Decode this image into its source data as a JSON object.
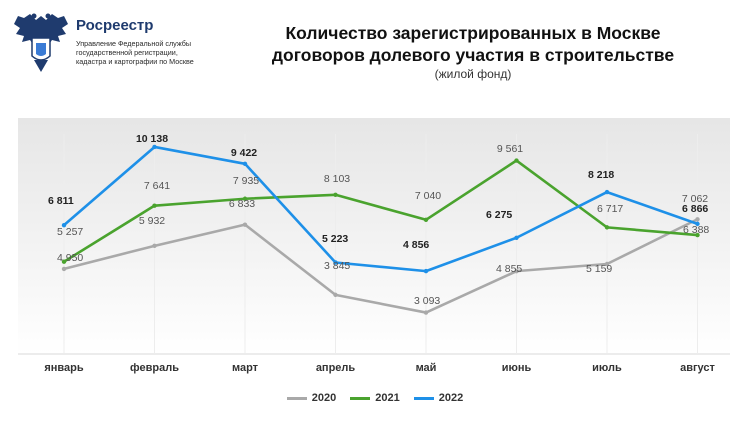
{
  "header": {
    "org_name": "Росреестр",
    "org_sub_1": "Управление Федеральной службы",
    "org_sub_2": "государственной регистрации,",
    "org_sub_3": "кадастра и картографии по Москве"
  },
  "chart_data": {
    "type": "line",
    "title_line_1": "Количество зарегистрированных в Москве",
    "title_line_2": "договоров долевого участия в строительстве",
    "subtitle": "(жилой фонд)",
    "categories": [
      "январь",
      "февраль",
      "март",
      "апрель",
      "май",
      "июнь",
      "июль",
      "август"
    ],
    "series": [
      {
        "name": "2020",
        "color": "#a9a9a9",
        "values": [
          4950,
          5932,
          6833,
          3845,
          3093,
          4855,
          5159,
          7062
        ],
        "labels": [
          "4 950",
          "5 932",
          "6 833",
          "3 845",
          "3 093",
          "4 855",
          "5 159",
          "7 062"
        ]
      },
      {
        "name": "2021",
        "color": "#4aa32e",
        "values": [
          5257,
          7641,
          7935,
          8103,
          7040,
          9561,
          6717,
          6388
        ],
        "labels": [
          "5 257",
          "7 641",
          "7 935",
          "8 103",
          "7 040",
          "9 561",
          "6 717",
          "6 388"
        ]
      },
      {
        "name": "2022",
        "color": "#1e90e8",
        "values": [
          6811,
          10138,
          9422,
          5223,
          4856,
          6275,
          8218,
          6866
        ],
        "labels": [
          "6 811",
          "10 138",
          "9 422",
          "5 223",
          "4 856",
          "6 275",
          "8 218",
          "6 866"
        ]
      }
    ],
    "ylim": [
      1500,
      11200
    ],
    "grid": false,
    "legend_position": "bottom"
  }
}
